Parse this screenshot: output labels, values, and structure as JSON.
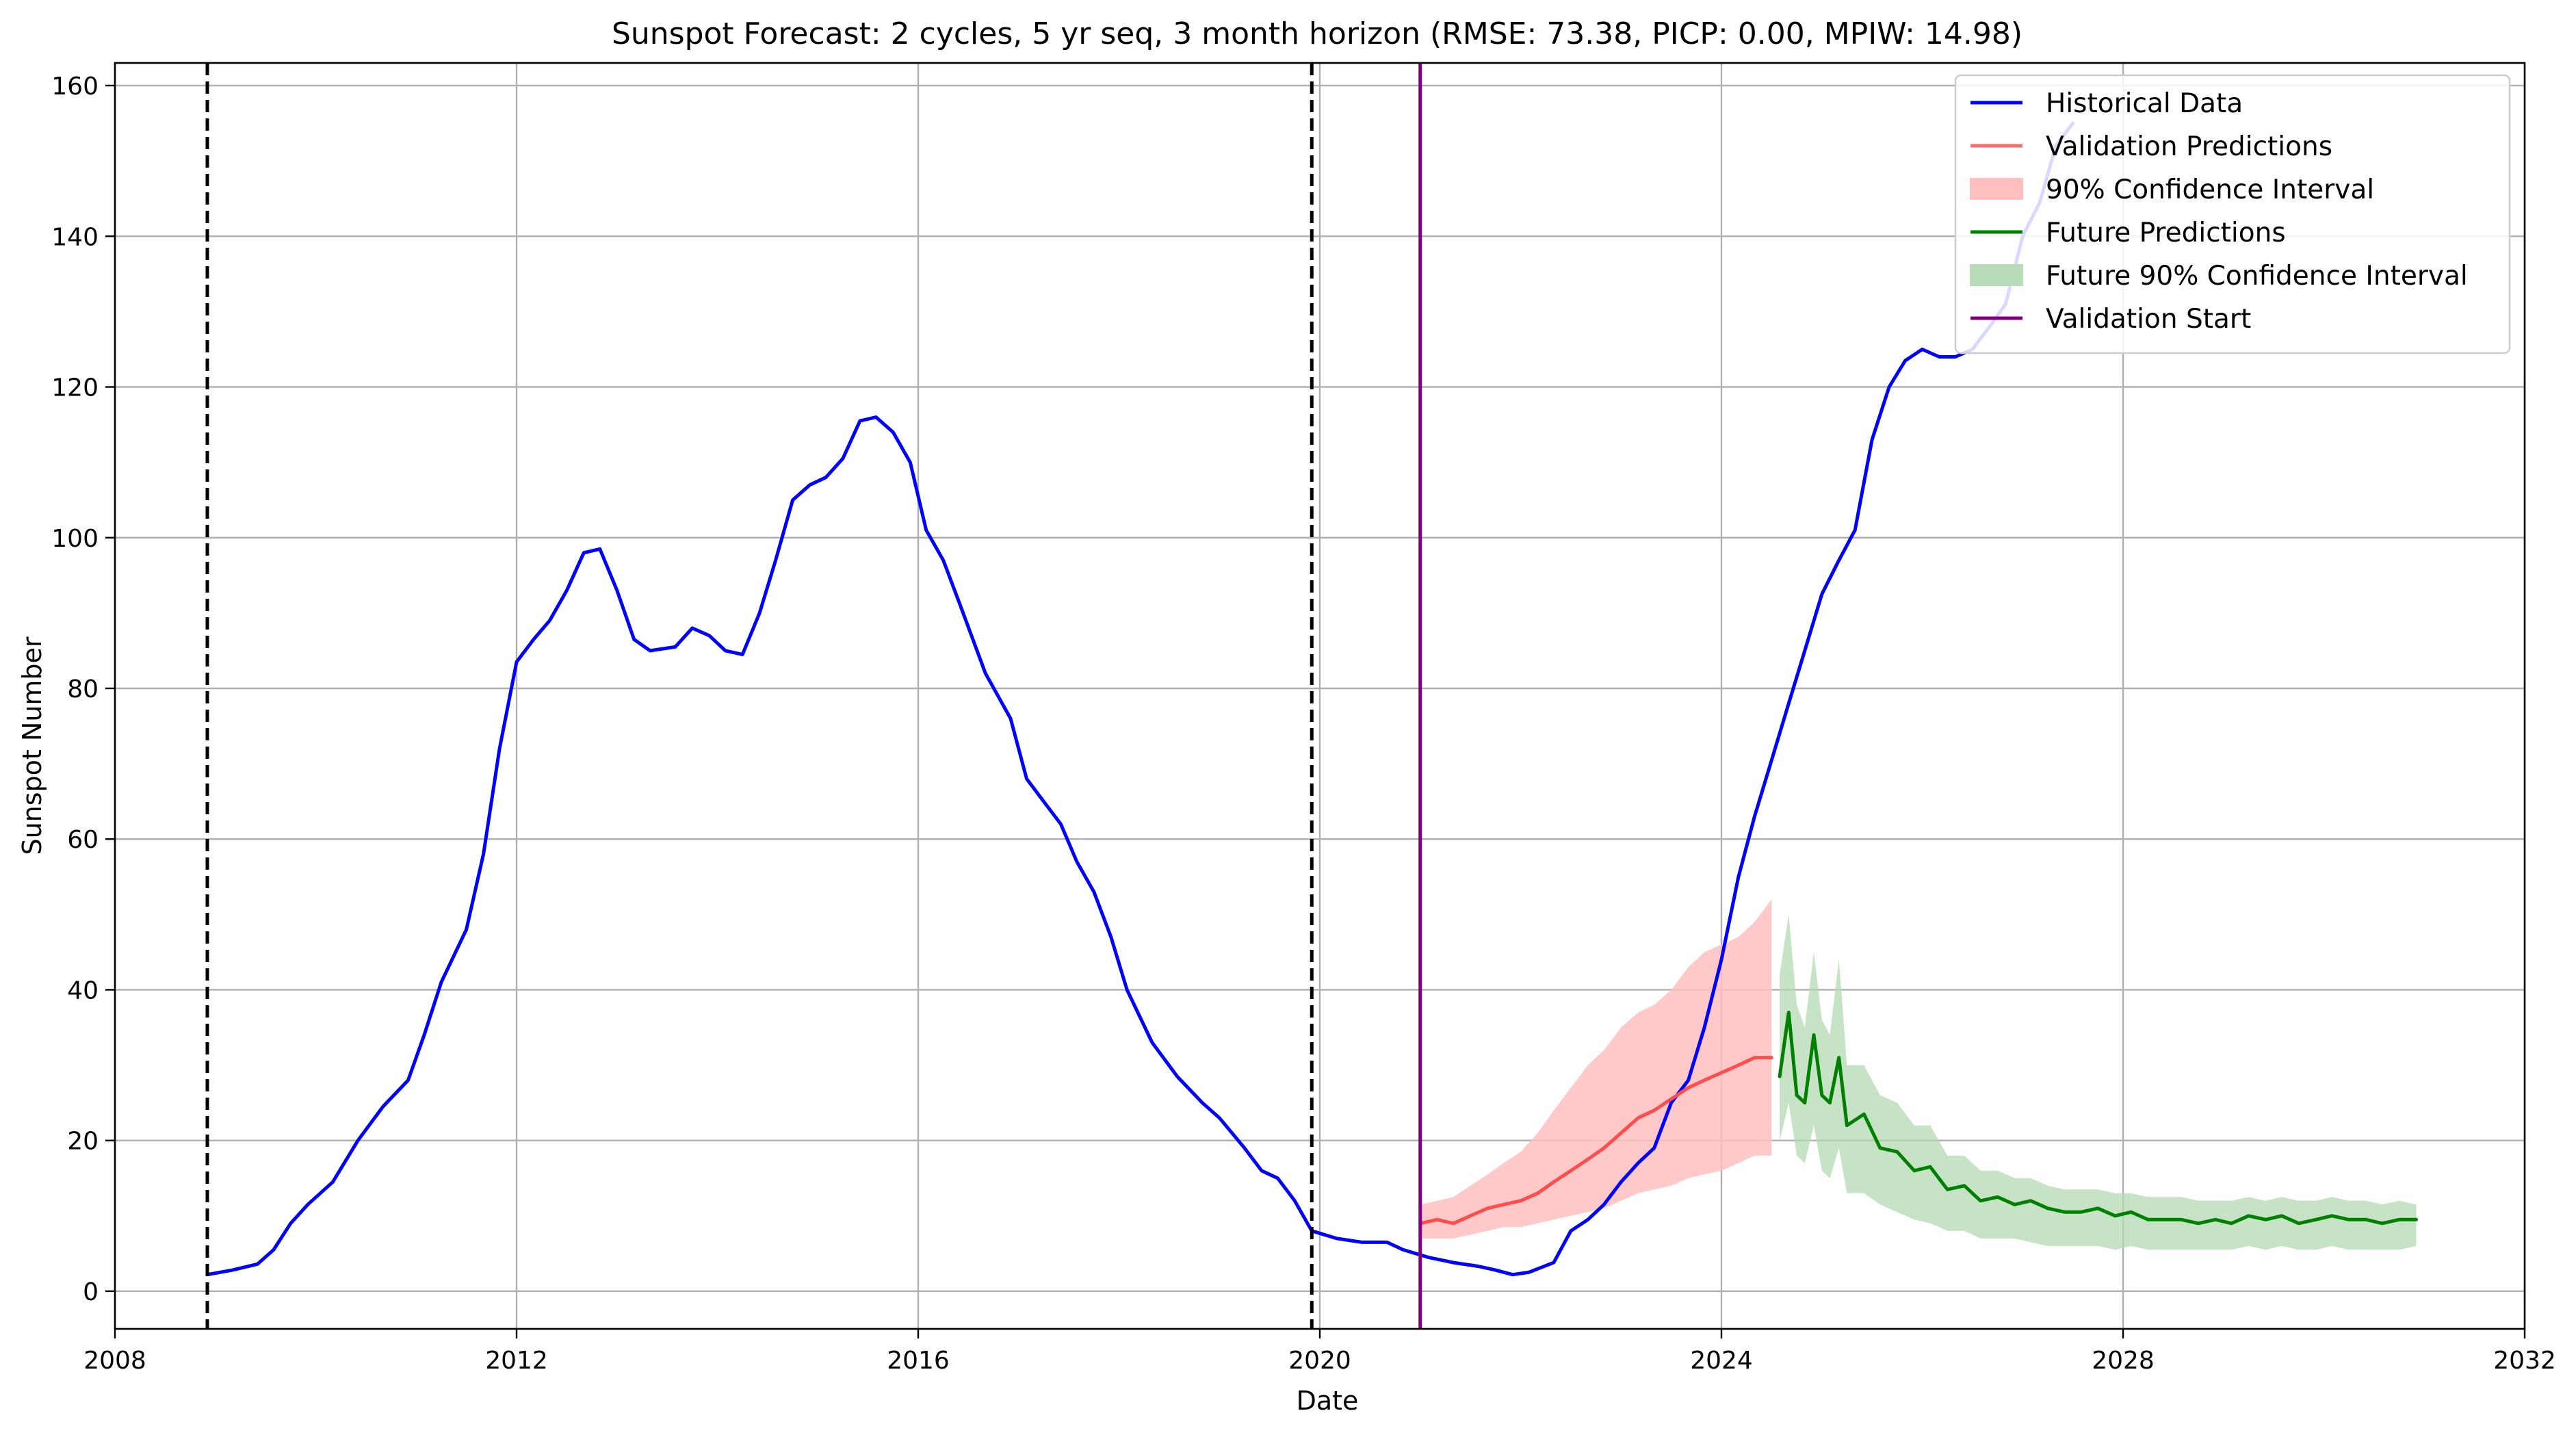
{
  "chart_data": {
    "type": "line",
    "title": "Sunspot Forecast: 2 cycles, 5 yr seq, 3 month horizon (RMSE: 73.38, PICP: 0.00, MPIW: 14.98)",
    "xlabel": "Date",
    "ylabel": "Sunspot Number",
    "xlim": [
      2008,
      2032
    ],
    "ylim": [
      -5,
      163
    ],
    "x_ticks": [
      "2008",
      "2012",
      "2016",
      "2020",
      "2024",
      "2028",
      "2032"
    ],
    "y_ticks": [
      "0",
      "20",
      "40",
      "60",
      "80",
      "100",
      "120",
      "140",
      "160"
    ],
    "grid": true,
    "legend_position": "top-right",
    "colors": {
      "historical": "#0000ff",
      "validation": "#ff4d4d",
      "validation_band": "#ffbfbf",
      "future": "#008000",
      "future_band": "#b3d9b3",
      "validation_start": "#800080",
      "cycle_marker": "#000000"
    },
    "legend": [
      {
        "label": "Historical Data",
        "kind": "line",
        "color": "#0000ff"
      },
      {
        "label": "Validation Predictions",
        "kind": "line",
        "color": "#ff6b6b"
      },
      {
        "label": "90% Confidence Interval",
        "kind": "patch",
        "color": "#ffbfbf"
      },
      {
        "label": "Future Predictions",
        "kind": "line",
        "color": "#008000"
      },
      {
        "label": "Future 90% Confidence Interval",
        "kind": "patch",
        "color": "#b8dcb8"
      },
      {
        "label": "Validation Start",
        "kind": "line",
        "color": "#800080"
      }
    ],
    "cycle_markers": [
      2008.92,
      2019.92
    ],
    "validation_start": 2021.0,
    "series": [
      {
        "name": "Historical Data",
        "points": [
          [
            2008.92,
            2.2
          ],
          [
            2009.17,
            2.8
          ],
          [
            2009.42,
            3.6
          ],
          [
            2009.58,
            5.5
          ],
          [
            2009.75,
            9
          ],
          [
            2009.92,
            11.5
          ],
          [
            2010.17,
            14.5
          ],
          [
            2010.42,
            20
          ],
          [
            2010.67,
            24.5
          ],
          [
            2010.92,
            28
          ],
          [
            2011.08,
            34
          ],
          [
            2011.25,
            41
          ],
          [
            2011.5,
            48
          ],
          [
            2011.67,
            58
          ],
          [
            2011.83,
            72
          ],
          [
            2012.0,
            83.5
          ],
          [
            2012.17,
            86.5
          ],
          [
            2012.33,
            89
          ],
          [
            2012.5,
            93
          ],
          [
            2012.67,
            98
          ],
          [
            2012.83,
            98.5
          ],
          [
            2013.0,
            93
          ],
          [
            2013.17,
            86.5
          ],
          [
            2013.33,
            85
          ],
          [
            2013.58,
            85.5
          ],
          [
            2013.75,
            88
          ],
          [
            2013.92,
            87
          ],
          [
            2014.08,
            85
          ],
          [
            2014.25,
            84.5
          ],
          [
            2014.42,
            90
          ],
          [
            2014.58,
            97
          ],
          [
            2014.75,
            105
          ],
          [
            2014.92,
            107
          ],
          [
            2015.08,
            108
          ],
          [
            2015.25,
            110.5
          ],
          [
            2015.42,
            115.5
          ],
          [
            2015.58,
            116
          ],
          [
            2015.75,
            114
          ],
          [
            2015.92,
            110
          ],
          [
            2016.08,
            101
          ],
          [
            2016.25,
            97
          ],
          [
            2016.42,
            91
          ],
          [
            2016.67,
            82
          ],
          [
            2016.92,
            76
          ],
          [
            2017.08,
            68
          ],
          [
            2017.25,
            65
          ],
          [
            2017.42,
            62
          ],
          [
            2017.58,
            57
          ],
          [
            2017.75,
            53
          ],
          [
            2017.92,
            47
          ],
          [
            2018.08,
            40
          ],
          [
            2018.33,
            33
          ],
          [
            2018.58,
            28.5
          ],
          [
            2018.83,
            25
          ],
          [
            2019.0,
            23
          ],
          [
            2019.25,
            19
          ],
          [
            2019.42,
            16
          ],
          [
            2019.58,
            15
          ],
          [
            2019.75,
            12
          ],
          [
            2019.92,
            8
          ],
          [
            2020.17,
            7
          ],
          [
            2020.42,
            6.5
          ],
          [
            2020.67,
            6.5
          ],
          [
            2020.83,
            5.5
          ],
          [
            2021.08,
            4.5
          ],
          [
            2021.33,
            3.8
          ],
          [
            2021.58,
            3.3
          ],
          [
            2021.75,
            2.8
          ],
          [
            2021.92,
            2.2
          ],
          [
            2022.08,
            2.5
          ],
          [
            2022.33,
            3.8
          ],
          [
            2022.5,
            8
          ],
          [
            2022.67,
            9.5
          ],
          [
            2022.83,
            11.5
          ],
          [
            2023.0,
            14.5
          ],
          [
            2023.17,
            17
          ],
          [
            2023.33,
            19
          ],
          [
            2023.5,
            25
          ],
          [
            2023.67,
            28
          ],
          [
            2023.83,
            35
          ],
          [
            2024.0,
            44
          ],
          [
            2024.17,
            55
          ],
          [
            2024.33,
            63
          ],
          [
            2024.5,
            70.5
          ],
          [
            2024.67,
            78
          ],
          [
            2024.83,
            85
          ],
          [
            2025.0,
            92.5
          ],
          [
            2025.17,
            97
          ],
          [
            2025.33,
            101
          ],
          [
            2025.5,
            113
          ],
          [
            2025.67,
            120
          ],
          [
            2025.83,
            123.5
          ],
          [
            2026.0,
            125
          ],
          [
            2026.17,
            124
          ],
          [
            2026.33,
            124
          ],
          [
            2026.5,
            125
          ],
          [
            2026.67,
            128
          ],
          [
            2026.83,
            131
          ],
          [
            2027.0,
            140
          ],
          [
            2027.17,
            144.5
          ],
          [
            2027.33,
            152
          ],
          [
            2027.5,
            155
          ]
        ]
      },
      {
        "name": "Validation Predictions",
        "points": [
          [
            2021.0,
            9
          ],
          [
            2021.17,
            9.5
          ],
          [
            2021.33,
            9
          ],
          [
            2021.5,
            10
          ],
          [
            2021.67,
            11
          ],
          [
            2021.83,
            11.5
          ],
          [
            2022.0,
            12
          ],
          [
            2022.17,
            13
          ],
          [
            2022.33,
            14.5
          ],
          [
            2022.5,
            16
          ],
          [
            2022.67,
            17.5
          ],
          [
            2022.83,
            19
          ],
          [
            2023.0,
            21
          ],
          [
            2023.17,
            23
          ],
          [
            2023.33,
            24
          ],
          [
            2023.5,
            25.5
          ],
          [
            2023.67,
            27
          ],
          [
            2023.83,
            28
          ],
          [
            2024.0,
            29
          ],
          [
            2024.17,
            30
          ],
          [
            2024.33,
            31
          ],
          [
            2024.5,
            31
          ]
        ],
        "lower": [
          7,
          7,
          7,
          7.5,
          8,
          8.5,
          8.5,
          9,
          9.5,
          10,
          10.5,
          11,
          12,
          13,
          13.5,
          14,
          15,
          15.5,
          16,
          17,
          18,
          18
        ],
        "upper": [
          11.5,
          12,
          12.5,
          14,
          15.5,
          17,
          18.5,
          21,
          24,
          27,
          30,
          32,
          35,
          37,
          38,
          40,
          43,
          45,
          46,
          47,
          49,
          52
        ]
      },
      {
        "name": "Future Predictions",
        "points": [
          [
            2024.58,
            28.5
          ],
          [
            2024.67,
            37
          ],
          [
            2024.75,
            26
          ],
          [
            2024.83,
            25
          ],
          [
            2024.92,
            34
          ],
          [
            2025.0,
            26
          ],
          [
            2025.08,
            25
          ],
          [
            2025.17,
            31
          ],
          [
            2025.25,
            22
          ],
          [
            2025.42,
            23.5
          ],
          [
            2025.58,
            19
          ],
          [
            2025.75,
            18.5
          ],
          [
            2025.92,
            16
          ],
          [
            2026.08,
            16.5
          ],
          [
            2026.25,
            13.5
          ],
          [
            2026.42,
            14
          ],
          [
            2026.58,
            12
          ],
          [
            2026.75,
            12.5
          ],
          [
            2026.92,
            11.5
          ],
          [
            2027.08,
            12
          ],
          [
            2027.25,
            11
          ],
          [
            2027.42,
            10.5
          ],
          [
            2027.58,
            10.5
          ],
          [
            2027.75,
            11
          ],
          [
            2027.92,
            10
          ],
          [
            2028.08,
            10.5
          ],
          [
            2028.25,
            9.5
          ],
          [
            2028.42,
            9.5
          ],
          [
            2028.58,
            9.5
          ],
          [
            2028.75,
            9
          ],
          [
            2028.92,
            9.5
          ],
          [
            2029.08,
            9
          ],
          [
            2029.25,
            10
          ],
          [
            2029.42,
            9.5
          ],
          [
            2029.58,
            10
          ],
          [
            2029.75,
            9
          ],
          [
            2029.92,
            9.5
          ],
          [
            2030.08,
            10
          ],
          [
            2030.25,
            9.5
          ],
          [
            2030.42,
            9.5
          ],
          [
            2030.58,
            9
          ],
          [
            2030.75,
            9.5
          ],
          [
            2030.92,
            9.5
          ]
        ],
        "lower": [
          20,
          25,
          18,
          17,
          22,
          16,
          15,
          19,
          13,
          13,
          11.5,
          10.5,
          9.5,
          9,
          8,
          8,
          7,
          7,
          7,
          6.5,
          6,
          6,
          6,
          6,
          5.5,
          6,
          5.5,
          5.5,
          5.5,
          5.5,
          5.5,
          5.5,
          6,
          5.5,
          6,
          5.5,
          5.5,
          6,
          5.5,
          5.5,
          5.5,
          5.5,
          6
        ],
        "upper": [
          42,
          50,
          38,
          35,
          45,
          36,
          34,
          44,
          30,
          30,
          26,
          25,
          22,
          22,
          18,
          18,
          16,
          16,
          15,
          15,
          14,
          13.5,
          13.5,
          13.5,
          13,
          13,
          12.5,
          12.5,
          12.5,
          12,
          12,
          12,
          12.5,
          12,
          12.5,
          12,
          12,
          12.5,
          12,
          12,
          11.5,
          12,
          11.5
        ]
      }
    ]
  }
}
